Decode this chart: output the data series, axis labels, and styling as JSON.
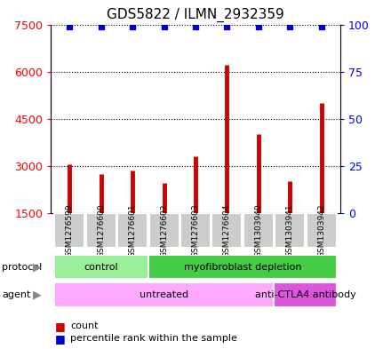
{
  "title": "GDS5822 / ILMN_2932359",
  "samples": [
    "GSM1276599",
    "GSM1276600",
    "GSM1276601",
    "GSM1276602",
    "GSM1276603",
    "GSM1276604",
    "GSM1303940",
    "GSM1303941",
    "GSM1303942"
  ],
  "counts": [
    3050,
    2750,
    2850,
    2450,
    3300,
    6200,
    4000,
    2500,
    5000
  ],
  "percentile_value": 99,
  "ylim_left": [
    1500,
    7500
  ],
  "ylim_right": [
    0,
    100
  ],
  "yticks_left": [
    1500,
    3000,
    4500,
    6000,
    7500
  ],
  "yticks_right": [
    0,
    25,
    50,
    75,
    100
  ],
  "bar_color": "#cc0000",
  "dot_color": "#0000cc",
  "protocol_groups": [
    {
      "label": "control",
      "start": 0,
      "end": 3,
      "color": "#99ee99"
    },
    {
      "label": "myofibroblast depletion",
      "start": 3,
      "end": 9,
      "color": "#44cc44"
    }
  ],
  "agent_groups": [
    {
      "label": "untreated",
      "start": 0,
      "end": 7,
      "color": "#ffaaff"
    },
    {
      "label": "anti-CTLA4 antibody",
      "start": 7,
      "end": 9,
      "color": "#dd55dd"
    }
  ],
  "protocol_label": "protocol",
  "agent_label": "agent",
  "legend_count_label": "count",
  "legend_pct_label": "percentile rank within the sample",
  "bg_color": "#ffffff",
  "sample_box_color": "#cccccc",
  "title_fontsize": 11
}
